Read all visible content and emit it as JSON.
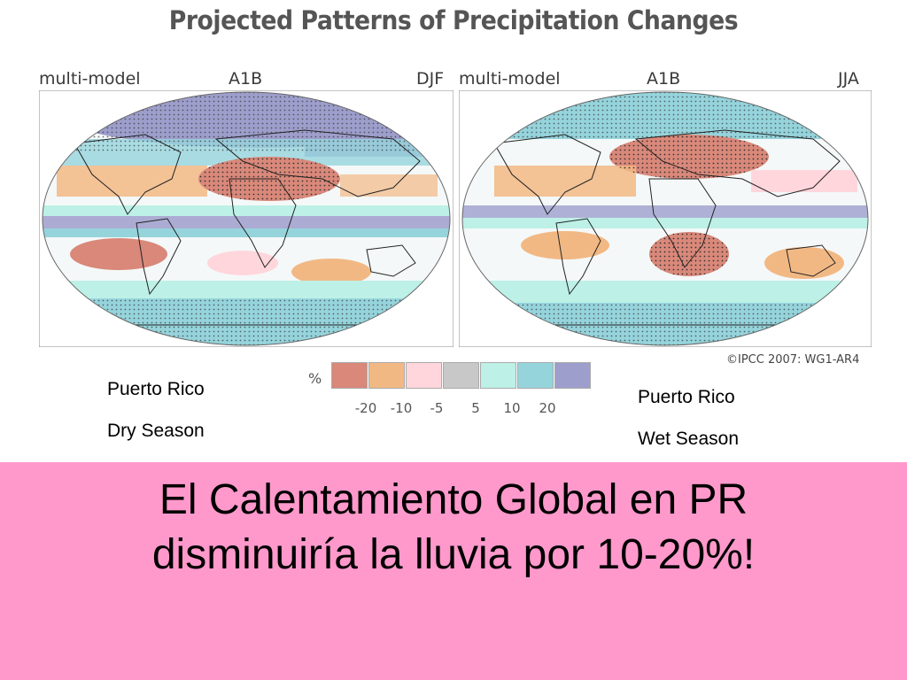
{
  "figure": {
    "title": "Projected Patterns of Precipitation Changes",
    "panels": [
      {
        "model": "multi-model",
        "scenario": "A1B",
        "season": "DJF"
      },
      {
        "model": "multi-model",
        "scenario": "A1B",
        "season": "JJA"
      }
    ],
    "copyright": "©IPCC 2007: WG1-AR4"
  },
  "legend": {
    "unit": "%",
    "colors": [
      "#d9887a",
      "#f2b884",
      "#ffd6dc",
      "#c8c8c8",
      "#bdf0e6",
      "#96d4dc",
      "#9e9ecc"
    ],
    "ticks": [
      "-20",
      "-10",
      "-5",
      "5",
      "10",
      "20"
    ]
  },
  "notes": {
    "dry": {
      "line1": "Puerto Rico",
      "line2": "Dry Season"
    },
    "wet": {
      "line1": "Puerto Rico",
      "line2": "Wet Season"
    }
  },
  "headline": {
    "line1": "El Calentamiento Global en PR",
    "line2": "disminuiría la lluvia por 10-20%!"
  },
  "colors": {
    "banner": "#ff99cc",
    "dry_brown": "#d9887a",
    "orange": "#f2b884",
    "light_pink": "#ffd6dc",
    "mint": "#bdf0e6",
    "teal": "#96d4dc",
    "purple": "#9e9ecc"
  }
}
